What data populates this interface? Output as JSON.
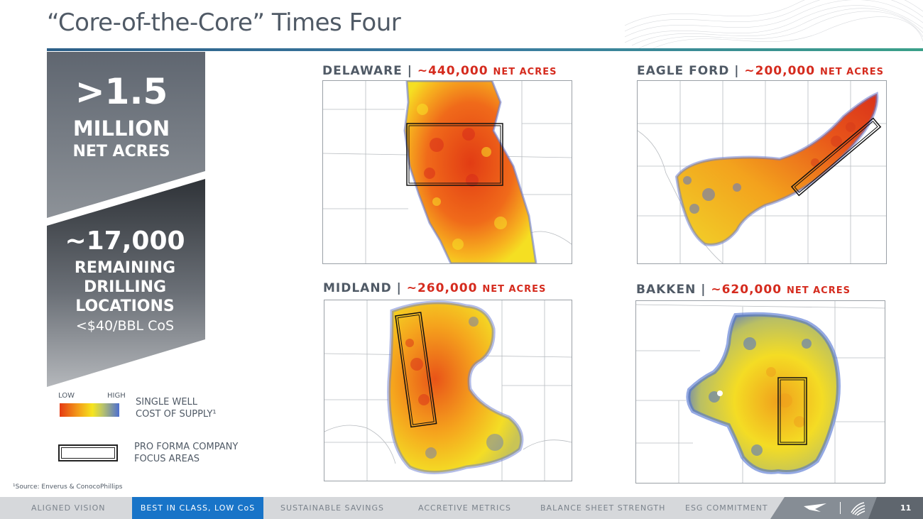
{
  "slide": {
    "title": "“Core-of-the-Core” Times Four",
    "page_number": "11",
    "footnote": "¹Source: Enverus & ConocoPhillips"
  },
  "stats": {
    "acres_value": ">1.5",
    "acres_unit": "MILLION",
    "acres_label": "NET ACRES",
    "locations_value": "~17,000",
    "locations_line1": "REMAINING",
    "locations_line2": "DRILLING",
    "locations_line3": "LOCATIONS",
    "locations_sub": "<$40/BBL CoS"
  },
  "legend": {
    "low": "LOW",
    "high": "HIGH",
    "cost_line1": "SINGLE WELL",
    "cost_line2": "COST OF SUPPLY¹",
    "focus_line1": "PRO FORMA COMPANY",
    "focus_line2": "FOCUS AREAS"
  },
  "maps": [
    {
      "basin": "DELAWARE",
      "acres": "~440,000",
      "unit": "NET ACRES"
    },
    {
      "basin": "EAGLE FORD",
      "acres": "~200,000",
      "unit": "NET ACRES"
    },
    {
      "basin": "MIDLAND",
      "acres": "~260,000",
      "unit": "NET ACRES"
    },
    {
      "basin": "BAKKEN",
      "acres": "~620,000",
      "unit": "NET ACRES"
    }
  ],
  "nav": {
    "items": [
      "ALIGNED VISION",
      "BEST IN CLASS, LOW CoS",
      "SUSTAINABLE SAVINGS",
      "ACCRETIVE METRICS",
      "BALANCE SHEET STRENGTH",
      "ESG COMMITMENT"
    ],
    "active": "BEST IN CLASS, LOW CoS"
  },
  "colors": {
    "accent_red": "#d52b1e",
    "active_tab": "#1874c8",
    "cost_low": "#e53a12",
    "cost_mid": "#f6e51e",
    "cost_high": "#4d6fd0"
  }
}
